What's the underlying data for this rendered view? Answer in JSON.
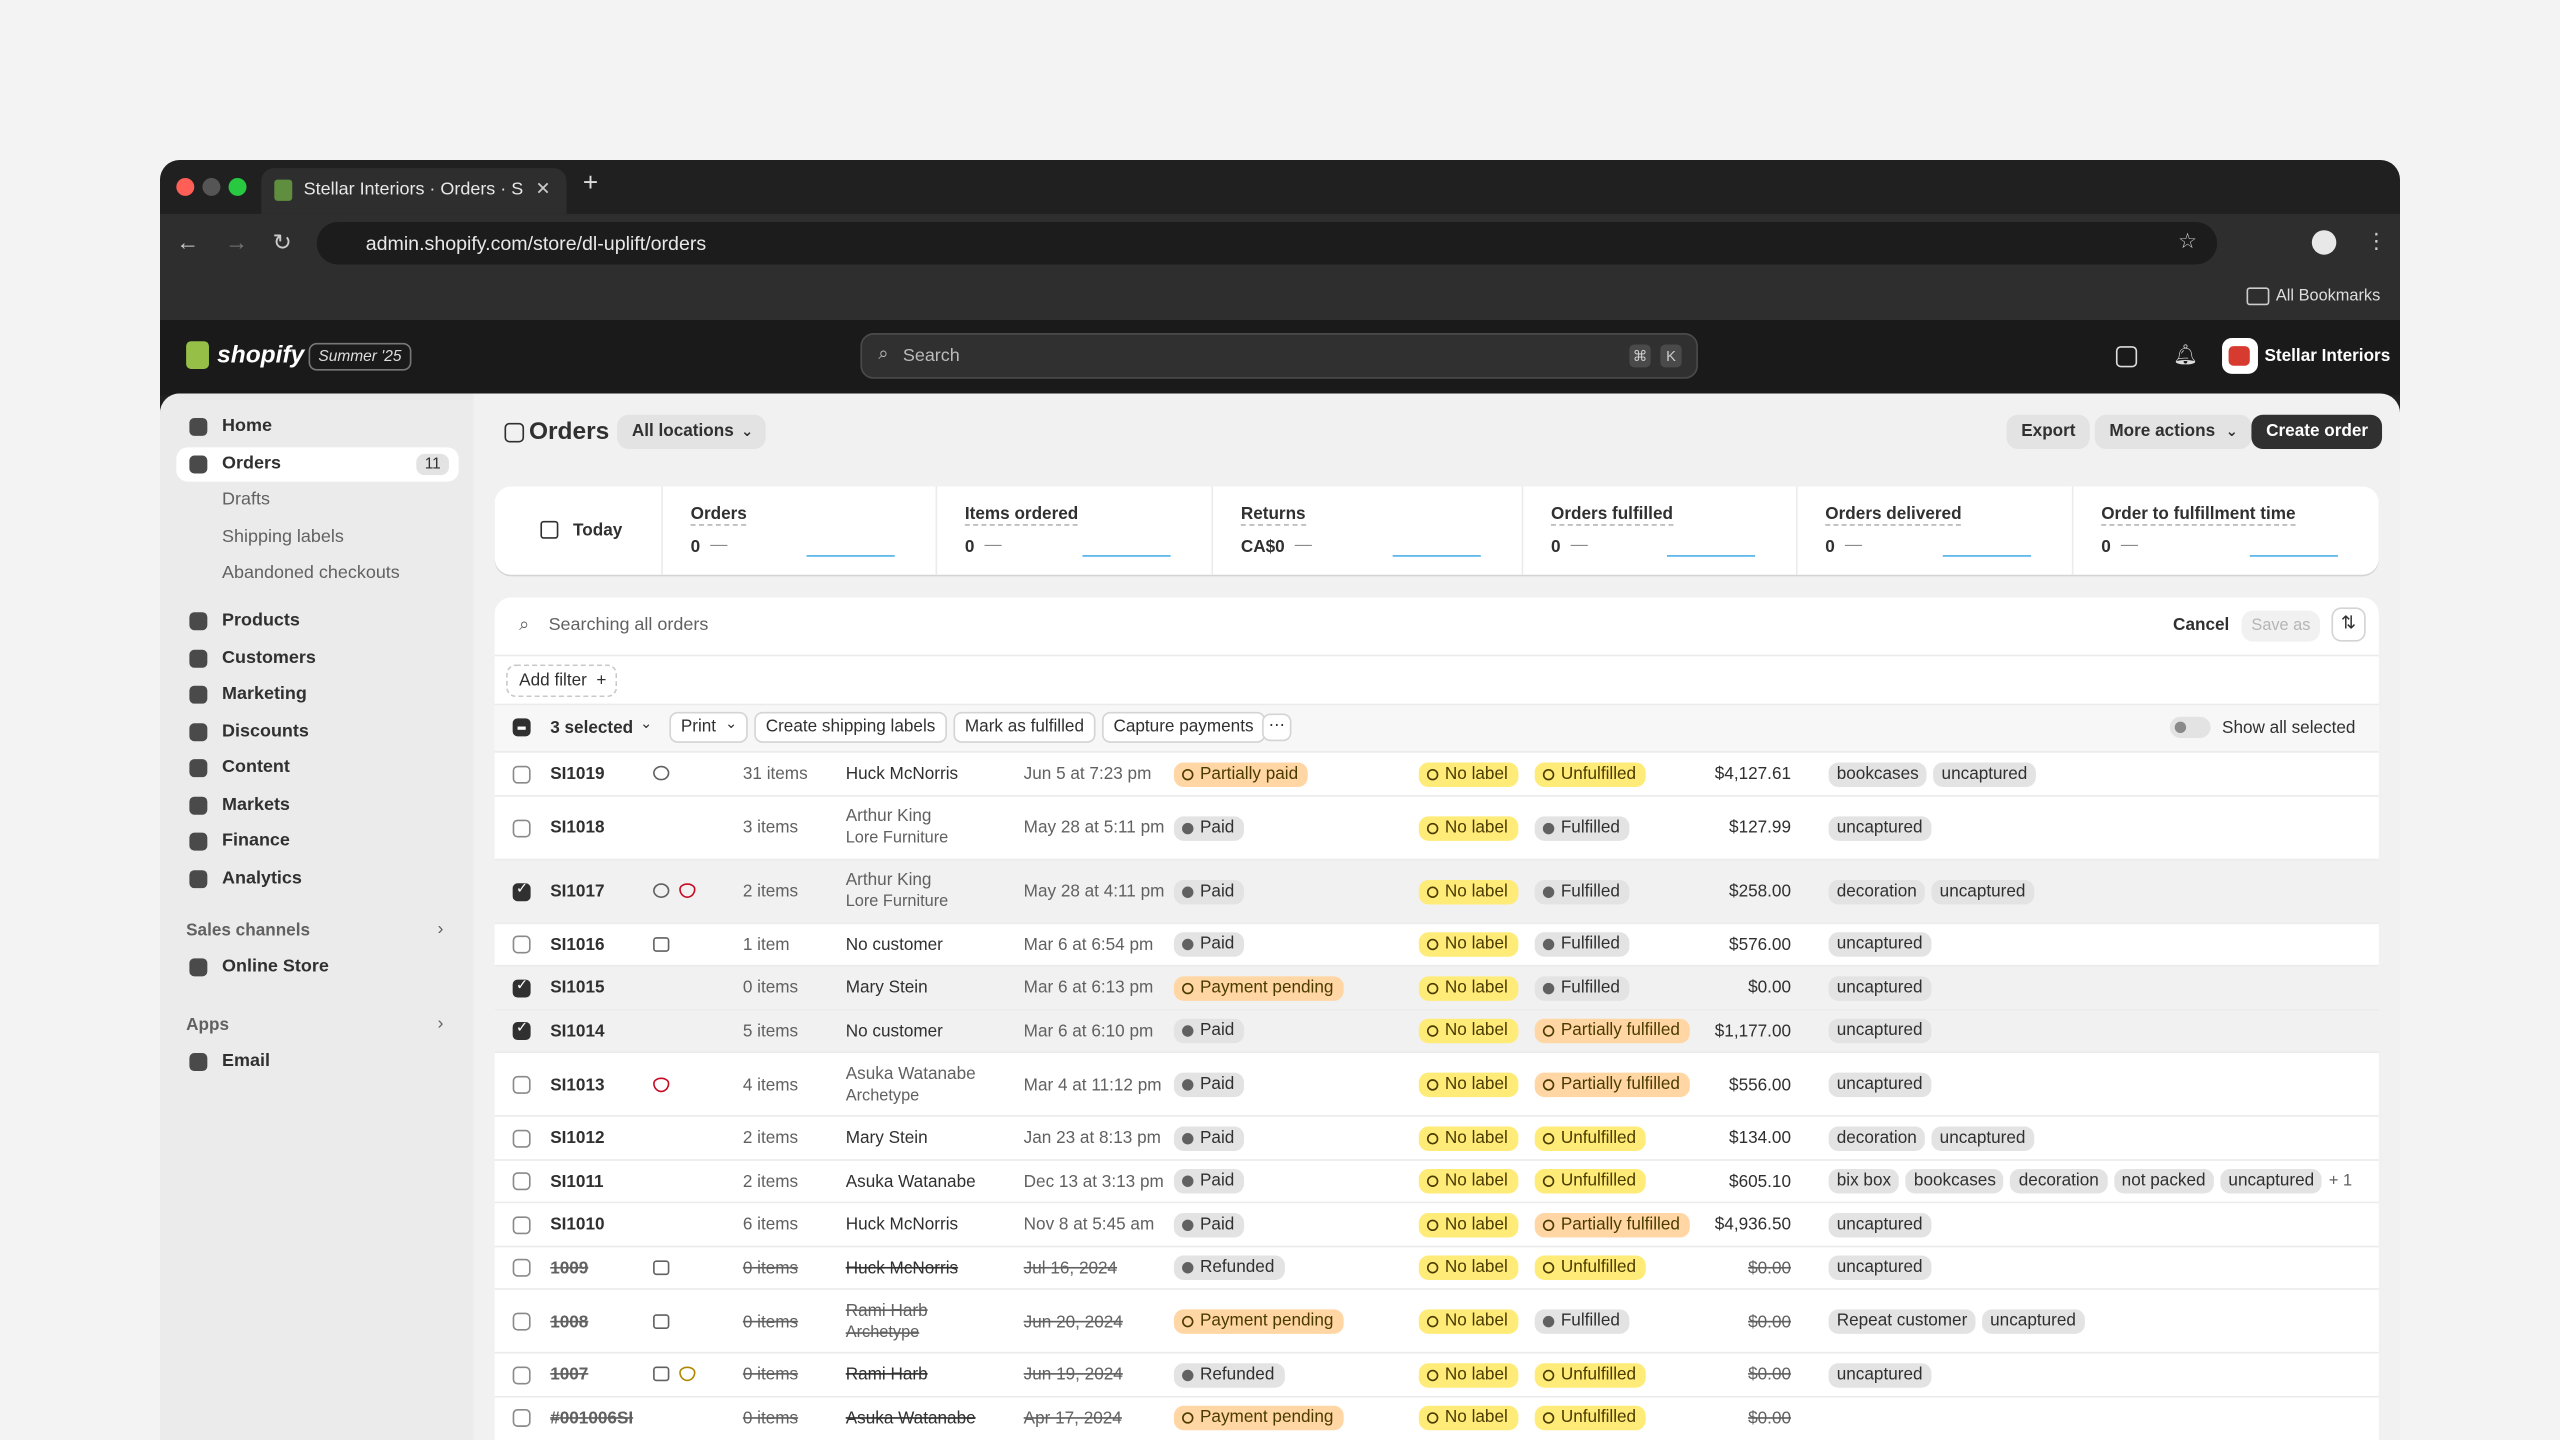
{
  "browser": {
    "tab_title": "Stellar Interiors · Orders · Sho",
    "url": "admin.shopify.com/store/dl-uplift/orders",
    "bookmarks": "All Bookmarks"
  },
  "topbar": {
    "brand": "shopify",
    "badge": "Summer '25",
    "search": "Search",
    "shortcut": [
      "⌘",
      "K"
    ],
    "store": "Stellar Interiors"
  },
  "sidebar": {
    "home": "Home",
    "orders": "Orders",
    "orders_count": "11",
    "orders_sub": [
      "Drafts",
      "Shipping labels",
      "Abandoned checkouts"
    ],
    "main": [
      "Products",
      "Customers",
      "Marketing",
      "Discounts",
      "Content",
      "Markets",
      "Finance",
      "Analytics"
    ],
    "sales_channels": {
      "title": "Sales channels",
      "items": [
        "Online Store"
      ]
    },
    "apps": {
      "title": "Apps",
      "items": [
        "Email"
      ]
    }
  },
  "header": {
    "title": "Orders",
    "location": "All locations",
    "export": "Export",
    "more": "More actions",
    "create": "Create order"
  },
  "metrics": {
    "period": "Today",
    "cards": [
      {
        "label": "Orders",
        "value": "0"
      },
      {
        "label": "Items ordered",
        "value": "0"
      },
      {
        "label": "Returns",
        "value": "CA$0"
      },
      {
        "label": "Orders fulfilled",
        "value": "0"
      },
      {
        "label": "Orders delivered",
        "value": "0"
      },
      {
        "label": "Order to fulfillment time",
        "value": "0"
      }
    ],
    "trend": "—"
  },
  "filter": {
    "search": "Searching all orders",
    "cancel": "Cancel",
    "save": "Save as",
    "add_filter": "Add filter"
  },
  "bulk": {
    "selected": "3 selected",
    "actions": [
      "Print",
      "Create shipping labels",
      "Mark as fulfilled",
      "Capture payments"
    ],
    "show_all": "Show all selected"
  },
  "table": {
    "rows": [
      {
        "order": "SI1019",
        "items": "31 items",
        "customer": "Huck McNorris",
        "date": "Jun 5 at 7:23 pm",
        "payment": "Partially paid",
        "payment_color": "#ffd6a4",
        "label": "No label",
        "fulfillment": "Unfulfilled",
        "fulfillment_color": "#ffeb78",
        "total": "$4,127.61",
        "tags": [
          "bookcases",
          "uncaptured"
        ],
        "icons": [
          "chat"
        ],
        "selected": false,
        "archived": false
      },
      {
        "order": "SI1018",
        "items": "3 items",
        "customer": "Arthur King",
        "company": "Lore Furniture",
        "date": "May 28 at 5:11 pm",
        "payment": "Paid",
        "payment_color": "#e3e3e3",
        "label": "No label",
        "fulfillment": "Fulfilled",
        "fulfillment_color": "#e3e3e3",
        "total": "$127.99",
        "tags": [
          "uncaptured"
        ],
        "icons": [],
        "selected": false,
        "archived": false
      },
      {
        "order": "SI1017",
        "items": "2 items",
        "customer": "Arthur King",
        "company": "Lore Furniture",
        "date": "May 28 at 4:11 pm",
        "payment": "Paid",
        "payment_color": "#e3e3e3",
        "label": "No label",
        "fulfillment": "Fulfilled",
        "fulfillment_color": "#e3e3e3",
        "total": "$258.00",
        "tags": [
          "decoration",
          "uncaptured"
        ],
        "icons": [
          "chat",
          "alert-red"
        ],
        "selected": true,
        "archived": false
      },
      {
        "order": "SI1016",
        "items": "1 item",
        "customer": "No customer",
        "date": "Mar 6 at 6:54 pm",
        "payment": "Paid",
        "payment_color": "#e3e3e3",
        "label": "No label",
        "fulfillment": "Fulfilled",
        "fulfillment_color": "#e3e3e3",
        "total": "$576.00",
        "tags": [
          "uncaptured"
        ],
        "icons": [
          "note"
        ],
        "selected": false,
        "archived": false
      },
      {
        "order": "SI1015",
        "items": "0 items",
        "customer": "Mary Stein",
        "date": "Mar 6 at 6:13 pm",
        "payment": "Payment pending",
        "payment_color": "#ffd6a4",
        "label": "No label",
        "fulfillment": "Fulfilled",
        "fulfillment_color": "#e3e3e3",
        "total": "$0.00",
        "tags": [
          "uncaptured"
        ],
        "icons": [],
        "selected": true,
        "archived": false
      },
      {
        "order": "SI1014",
        "items": "5 items",
        "customer": "No customer",
        "date": "Mar 6 at 6:10 pm",
        "payment": "Paid",
        "payment_color": "#e3e3e3",
        "label": "No label",
        "fulfillment": "Partially fulfilled",
        "fulfillment_color": "#ffd6a4",
        "total": "$1,177.00",
        "tags": [
          "uncaptured"
        ],
        "icons": [],
        "selected": true,
        "archived": false
      },
      {
        "order": "SI1013",
        "items": "4 items",
        "customer": "Asuka Watanabe",
        "company": "Archetype",
        "date": "Mar 4 at 11:12 pm",
        "payment": "Paid",
        "payment_color": "#e3e3e3",
        "label": "No label",
        "fulfillment": "Partially fulfilled",
        "fulfillment_color": "#ffd6a4",
        "total": "$556.00",
        "tags": [
          "uncaptured"
        ],
        "icons": [
          "alert-red"
        ],
        "selected": false,
        "archived": false
      },
      {
        "order": "SI1012",
        "items": "2 items",
        "customer": "Mary Stein",
        "date": "Jan 23 at 8:13 pm",
        "payment": "Paid",
        "payment_color": "#e3e3e3",
        "label": "No label",
        "fulfillment": "Unfulfilled",
        "fulfillment_color": "#ffeb78",
        "total": "$134.00",
        "tags": [
          "decoration",
          "uncaptured"
        ],
        "icons": [],
        "selected": false,
        "archived": false
      },
      {
        "order": "SI1011",
        "items": "2 items",
        "customer": "Asuka Watanabe",
        "date": "Dec 13 at 3:13 pm",
        "payment": "Paid",
        "payment_color": "#e3e3e3",
        "label": "No label",
        "fulfillment": "Unfulfilled",
        "fulfillment_color": "#ffeb78",
        "total": "$605.10",
        "tags": [
          "bix box",
          "bookcases",
          "decoration",
          "not packed",
          "uncaptured"
        ],
        "more_tags": "+ 1",
        "icons": [],
        "selected": false,
        "archived": false
      },
      {
        "order": "SI1010",
        "items": "6 items",
        "customer": "Huck McNorris",
        "date": "Nov 8 at 5:45 am",
        "payment": "Paid",
        "payment_color": "#e3e3e3",
        "label": "No label",
        "fulfillment": "Partially fulfilled",
        "fulfillment_color": "#ffd6a4",
        "total": "$4,936.50",
        "tags": [
          "uncaptured"
        ],
        "icons": [],
        "selected": false,
        "archived": false
      },
      {
        "order": "1009",
        "items": "0 items",
        "customer": "Huck McNorris",
        "date": "Jul 16, 2024",
        "payment": "Refunded",
        "payment_color": "#e3e3e3",
        "label": "No label",
        "fulfillment": "Unfulfilled",
        "fulfillment_color": "#ffeb78",
        "total": "$0.00",
        "tags": [
          "uncaptured"
        ],
        "icons": [
          "note"
        ],
        "selected": false,
        "archived": true
      },
      {
        "order": "1008",
        "items": "0 items",
        "customer": "Rami Harb",
        "company": "Archetype",
        "date": "Jun 20, 2024",
        "payment": "Payment pending",
        "payment_color": "#ffd6a4",
        "label": "No label",
        "fulfillment": "Fulfilled",
        "fulfillment_color": "#e3e3e3",
        "total": "$0.00",
        "tags": [
          "Repeat customer",
          "uncaptured"
        ],
        "icons": [
          "note"
        ],
        "selected": false,
        "archived": true
      },
      {
        "order": "1007",
        "items": "0 items",
        "customer": "Rami Harb",
        "date": "Jun 19, 2024",
        "payment": "Refunded",
        "payment_color": "#e3e3e3",
        "label": "No label",
        "fulfillment": "Unfulfilled",
        "fulfillment_color": "#ffeb78",
        "total": "$0.00",
        "tags": [
          "uncaptured"
        ],
        "icons": [
          "note",
          "alert-yellow"
        ],
        "selected": false,
        "archived": true
      },
      {
        "order": "#001006SI",
        "items": "0 items",
        "customer": "Asuka Watanabe",
        "date": "Apr 17, 2024",
        "payment": "Payment pending",
        "payment_color": "#ffd6a4",
        "label": "No label",
        "fulfillment": "Unfulfilled",
        "fulfillment_color": "#ffeb78",
        "total": "$0.00",
        "tags": [],
        "icons": [],
        "selected": false,
        "archived": true
      }
    ]
  }
}
